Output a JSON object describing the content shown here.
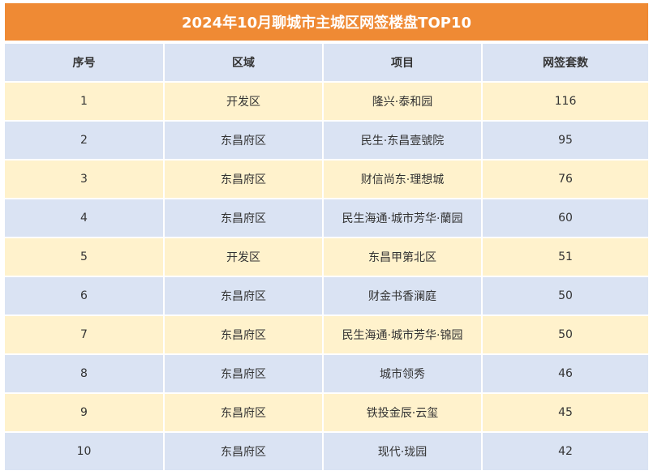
{
  "title": "2024年10月聊城市主城区网签楼盘TOP10",
  "colors": {
    "title_bg": "#ef8a34",
    "header_bg": "#dae3f3",
    "row_odd_bg": "#fff2cc",
    "row_even_bg": "#dae3f3"
  },
  "table": {
    "headers": [
      "序号",
      "区域",
      "项目",
      "网签套数"
    ],
    "rows": [
      [
        "1",
        "开发区",
        "隆兴·泰和园",
        "116"
      ],
      [
        "2",
        "东昌府区",
        "民生·东昌壹號院",
        "95"
      ],
      [
        "3",
        "东昌府区",
        "财信尚东·理想城",
        "76"
      ],
      [
        "4",
        "东昌府区",
        "民生海通·城市芳华·蘭园",
        "60"
      ],
      [
        "5",
        "开发区",
        "东昌甲第北区",
        "51"
      ],
      [
        "6",
        "东昌府区",
        "财金书香澜庭",
        "50"
      ],
      [
        "7",
        "东昌府区",
        "民生海通·城市芳华·锦园",
        "50"
      ],
      [
        "8",
        "东昌府区",
        "城市领秀",
        "46"
      ],
      [
        "9",
        "东昌府区",
        "铁投金辰·云玺",
        "45"
      ],
      [
        "10",
        "东昌府区",
        "现代·珑园",
        "42"
      ]
    ]
  }
}
